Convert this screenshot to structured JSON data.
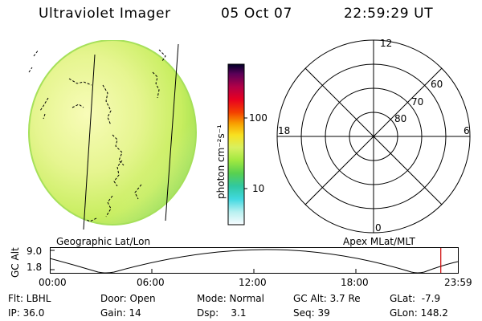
{
  "header": {
    "instrument": "Ultraviolet Imager",
    "date": "05 Oct 07",
    "time": "22:59:29 UT"
  },
  "colorbar": {
    "unit_label": "photon cm⁻²s⁻¹",
    "tick_labels": [
      "100",
      "10"
    ]
  },
  "polar_plot": {
    "mlt_labels": [
      "12",
      "18",
      "6",
      "0"
    ],
    "lat_labels": [
      "60",
      "70",
      "80"
    ]
  },
  "grid_labels": {
    "geographic": "Geographic Lat/Lon",
    "apex": "Apex MLat/MLT"
  },
  "altitude_strip": {
    "axis_title": "GC Alt",
    "y_max_label": "9.0",
    "y_min_label": "1.8",
    "time_ticks": [
      "00:00",
      "06:00",
      "12:00",
      "18:00",
      "23:59"
    ],
    "current_time_fraction": 0.958
  },
  "info": {
    "filter": "Flt: LBHL",
    "door": "Door: Open",
    "mode": "Mode: Normal",
    "gc_alt": "GC Alt: 3.7 Re",
    "glat": "GLat:  -7.9",
    "ip": "IP: 36.0",
    "gain": "Gain: 14",
    "dsp": "Dsp:    3.1",
    "seq": "Seq: 39",
    "glon": "GLon: 148.2"
  },
  "colors": {
    "disk_green": "#c8f050",
    "disk_yellow": "#f0f8a0",
    "disk_dark": "#8ad848",
    "marker_red": "#cc0000"
  }
}
